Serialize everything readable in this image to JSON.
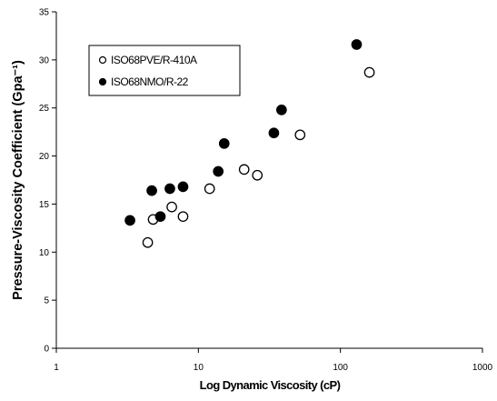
{
  "chart_data": {
    "type": "scatter",
    "title": "",
    "xlabel": "Log Dynamic Viscosity (cP)",
    "ylabel": "Pressure-Viscosity Coefficient (Gpa⁻¹)",
    "x_scale": "log",
    "xlim": [
      1,
      1000
    ],
    "ylim": [
      0,
      35
    ],
    "x_ticks": [
      1,
      10,
      100,
      1000
    ],
    "x_tick_labels": [
      "1",
      "10",
      "100",
      "1000"
    ],
    "y_ticks": [
      0,
      5,
      10,
      15,
      20,
      25,
      30,
      35
    ],
    "y_tick_labels": [
      "0",
      "5",
      "10",
      "15",
      "20",
      "25",
      "30",
      "35"
    ],
    "grid": false,
    "legend_position": "top-left",
    "series": [
      {
        "name": "ISO68PVE/R-410A",
        "marker": "open-circle",
        "color": "#000000",
        "points": [
          {
            "x": 4.4,
            "y": 11.0
          },
          {
            "x": 4.8,
            "y": 13.4
          },
          {
            "x": 6.5,
            "y": 14.7
          },
          {
            "x": 7.8,
            "y": 13.7
          },
          {
            "x": 12.0,
            "y": 16.6
          },
          {
            "x": 21.0,
            "y": 18.6
          },
          {
            "x": 26.0,
            "y": 18.0
          },
          {
            "x": 52.0,
            "y": 22.2
          },
          {
            "x": 160.0,
            "y": 28.7
          }
        ]
      },
      {
        "name": "ISO68NMO/R-22",
        "marker": "filled-circle",
        "color": "#000000",
        "points": [
          {
            "x": 3.3,
            "y": 13.3
          },
          {
            "x": 4.7,
            "y": 16.4
          },
          {
            "x": 5.4,
            "y": 13.7
          },
          {
            "x": 6.3,
            "y": 16.6
          },
          {
            "x": 7.8,
            "y": 16.8
          },
          {
            "x": 13.8,
            "y": 18.4
          },
          {
            "x": 15.2,
            "y": 21.3
          },
          {
            "x": 34.0,
            "y": 22.4
          },
          {
            "x": 38.5,
            "y": 24.8
          },
          {
            "x": 130.0,
            "y": 31.6
          }
        ]
      }
    ]
  }
}
